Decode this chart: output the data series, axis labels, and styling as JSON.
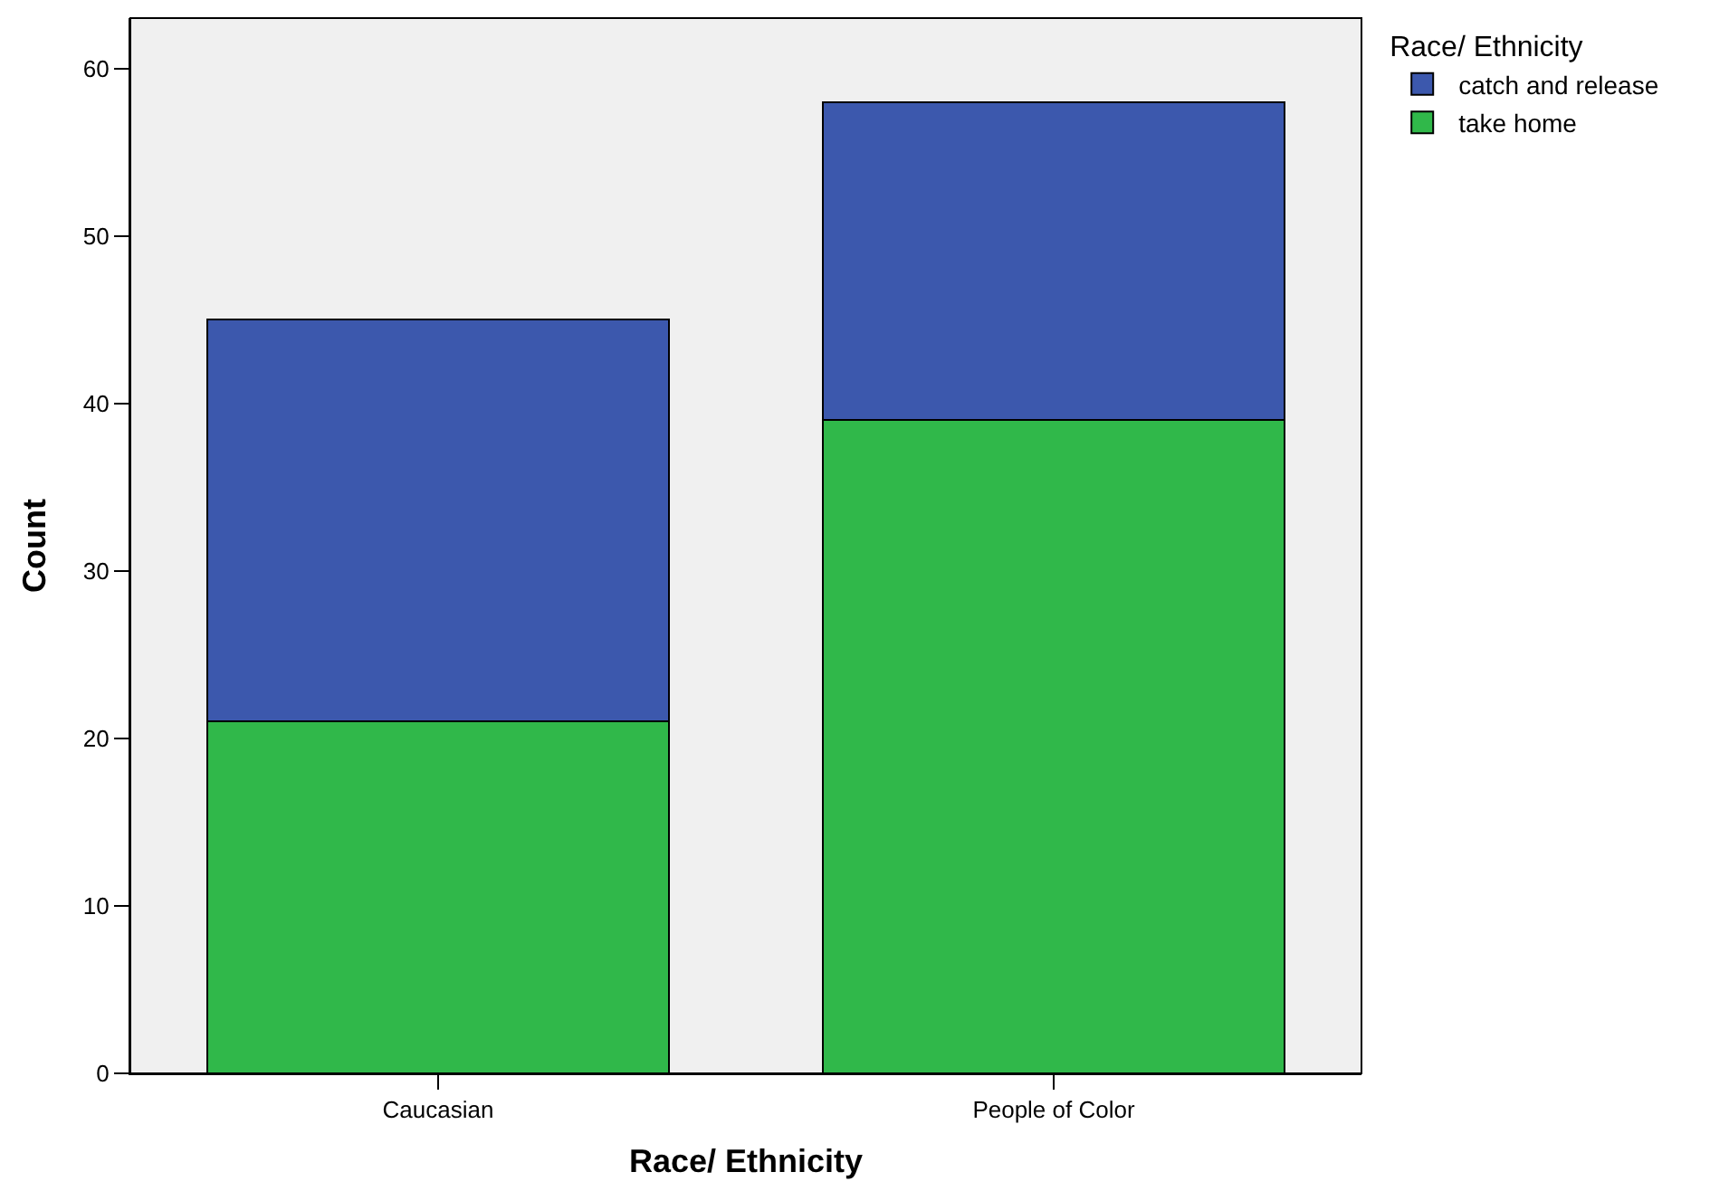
{
  "chart_data": {
    "type": "bar",
    "stacked": true,
    "xlabel": "Race/ Ethnicity",
    "ylabel": "Count",
    "legend_title": "Race/ Ethnicity",
    "legend": "top right",
    "grid": false,
    "categories": [
      "Caucasian",
      "People of Color"
    ],
    "series": [
      {
        "name": "take home",
        "color": "#30b84a",
        "values": [
          21,
          39
        ]
      },
      {
        "name": "catch and release",
        "color": "#3c58ad",
        "values": [
          24,
          19
        ]
      }
    ],
    "ylim": [
      0,
      63
    ],
    "yticks": [
      0,
      10,
      20,
      30,
      40,
      50,
      60
    ]
  }
}
